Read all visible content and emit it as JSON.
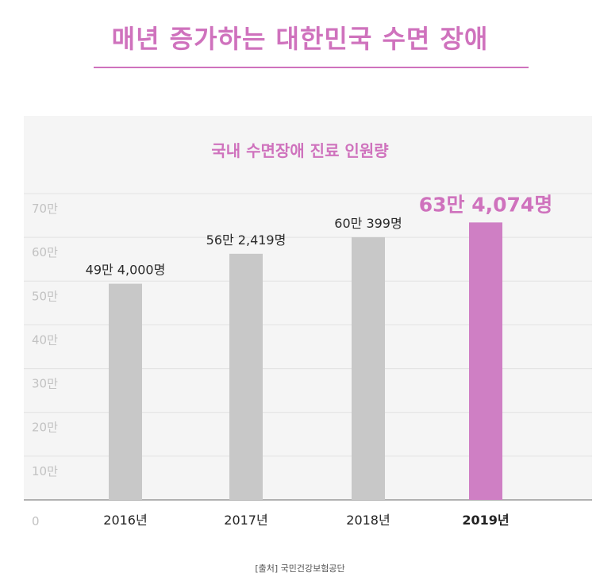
{
  "header": {
    "title": "매년 증가하는 대한민국 수면 장애"
  },
  "chart_data": {
    "type": "bar",
    "title": "국내 수면장애 진료 인원량",
    "categories": [
      "2016년",
      "2017년",
      "2018년",
      "2019년"
    ],
    "values": [
      494000,
      562419,
      600399,
      634074
    ],
    "data_labels": [
      "49만 4,000명",
      "56만 2,419명",
      "60만 399명",
      "63만 4,074명"
    ],
    "ylim": [
      0,
      700000
    ],
    "y_ticks": [
      {
        "value": 0,
        "label": "0"
      },
      {
        "value": 100000,
        "label": "10만"
      },
      {
        "value": 200000,
        "label": "20만"
      },
      {
        "value": 300000,
        "label": "30만"
      },
      {
        "value": 400000,
        "label": "40만"
      },
      {
        "value": 500000,
        "label": "50만"
      },
      {
        "value": 600000,
        "label": "60만"
      },
      {
        "value": 700000,
        "label": "70만"
      }
    ],
    "grid": true,
    "highlight_index": 3,
    "colors": {
      "bar": "#c8c8c8",
      "highlight": "#cf7fc4",
      "accent": "#cf72bd",
      "grid": "#e2e2e2",
      "tick": "#c2c2c2",
      "axis": "#9a9a9a"
    }
  },
  "footer": {
    "source": "[출처] 국민건강보험공단"
  }
}
